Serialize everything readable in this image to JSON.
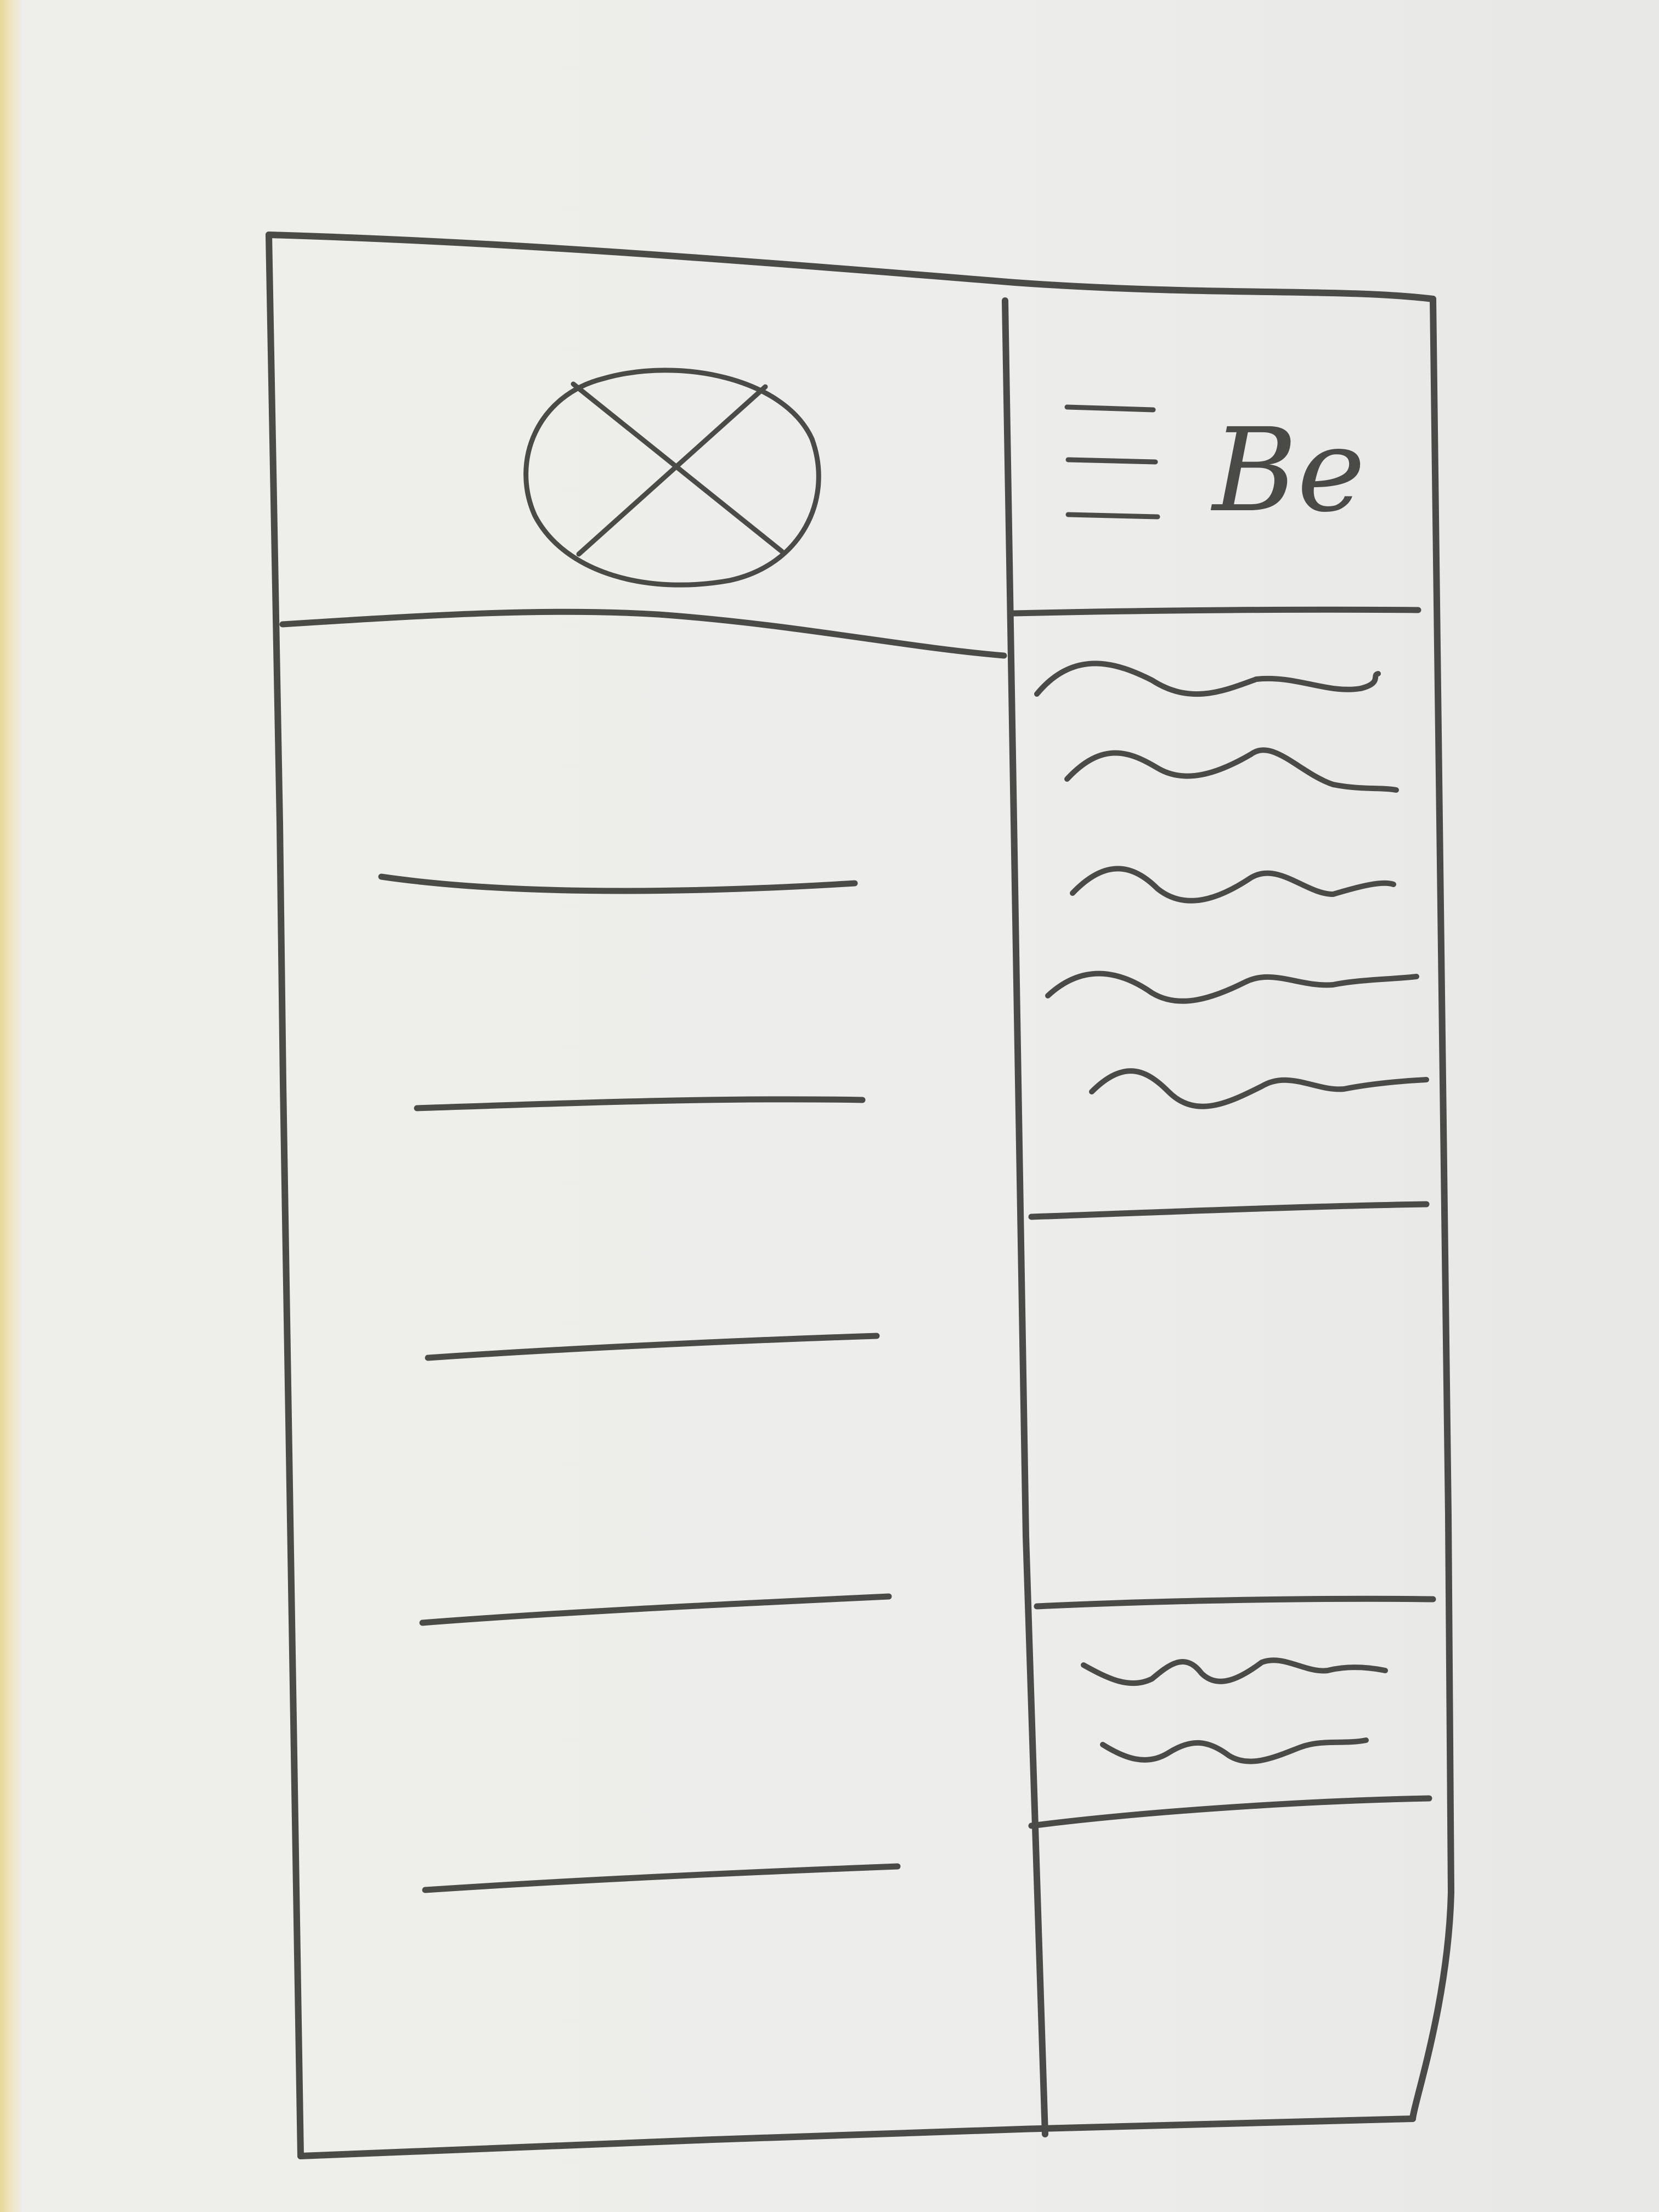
{
  "header": {
    "logo_text": "Be",
    "logo_icon": "crossed-circle-icon",
    "menu_icon": "hamburger-menu-icon"
  },
  "colors": {
    "paper": "#ededeb",
    "ink": "#4a4a46",
    "desk": "#e9d79a"
  }
}
